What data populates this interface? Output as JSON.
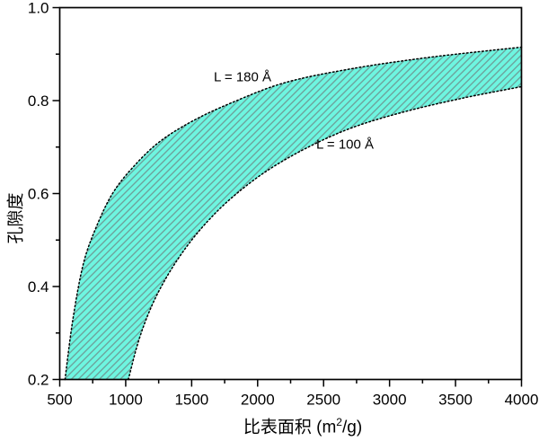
{
  "chart_data": {
    "type": "area",
    "title": "",
    "xlabel": {
      "prefix": "比表面积 (m",
      "sup": "2",
      "suffix": "/g)"
    },
    "ylabel": "孔隙度",
    "xlim": [
      500,
      4000
    ],
    "ylim": [
      0.2,
      1.0
    ],
    "grid": false,
    "axis_color": "#000000",
    "text_color": "#000000",
    "x_major_ticks": [
      {
        "value": 500,
        "label": "500"
      },
      {
        "value": 1000,
        "label": "1000"
      },
      {
        "value": 1500,
        "label": "1500"
      },
      {
        "value": 2000,
        "label": "2000"
      },
      {
        "value": 2500,
        "label": "2500"
      },
      {
        "value": 3000,
        "label": "3000"
      },
      {
        "value": 3500,
        "label": "3500"
      },
      {
        "value": 4000,
        "label": "4000"
      }
    ],
    "x_minor_ticks": [
      750,
      1250,
      1750,
      2250,
      2750,
      3250,
      3750
    ],
    "y_major_ticks": [
      {
        "value": 0.2,
        "label": "0.2"
      },
      {
        "value": 0.4,
        "label": "0.4"
      },
      {
        "value": 0.6,
        "label": "0.6"
      },
      {
        "value": 0.8,
        "label": "0.8"
      },
      {
        "value": 1.0,
        "label": "1.0"
      }
    ],
    "y_minor_ticks": [
      0.3,
      0.5,
      0.7,
      0.9
    ],
    "band": {
      "fill_color": "#6EF5E0",
      "hatch_color": "#6E9691",
      "hatch_angle_deg": 45,
      "hatch_spacing_px": 5.5,
      "edge_style": "dotted",
      "edge_color": "#000000"
    },
    "series": [
      {
        "name": "upper-curve",
        "label": "L = 180 Å",
        "points": [
          [
            540,
            0.2
          ],
          [
            600,
            0.33
          ],
          [
            680,
            0.45
          ],
          [
            780,
            0.53
          ],
          [
            900,
            0.6
          ],
          [
            1050,
            0.655
          ],
          [
            1250,
            0.71
          ],
          [
            1500,
            0.755
          ],
          [
            1800,
            0.795
          ],
          [
            2200,
            0.838
          ],
          [
            2700,
            0.868
          ],
          [
            3300,
            0.893
          ],
          [
            4000,
            0.915
          ]
        ]
      },
      {
        "name": "lower-curve",
        "label": "L = 100 Å",
        "points": [
          [
            1020,
            0.2
          ],
          [
            1100,
            0.285
          ],
          [
            1200,
            0.36
          ],
          [
            1320,
            0.425
          ],
          [
            1460,
            0.485
          ],
          [
            1620,
            0.54
          ],
          [
            1800,
            0.59
          ],
          [
            2050,
            0.645
          ],
          [
            2350,
            0.695
          ],
          [
            2700,
            0.74
          ],
          [
            3100,
            0.775
          ],
          [
            3550,
            0.805
          ],
          [
            4000,
            0.83
          ]
        ]
      }
    ]
  }
}
